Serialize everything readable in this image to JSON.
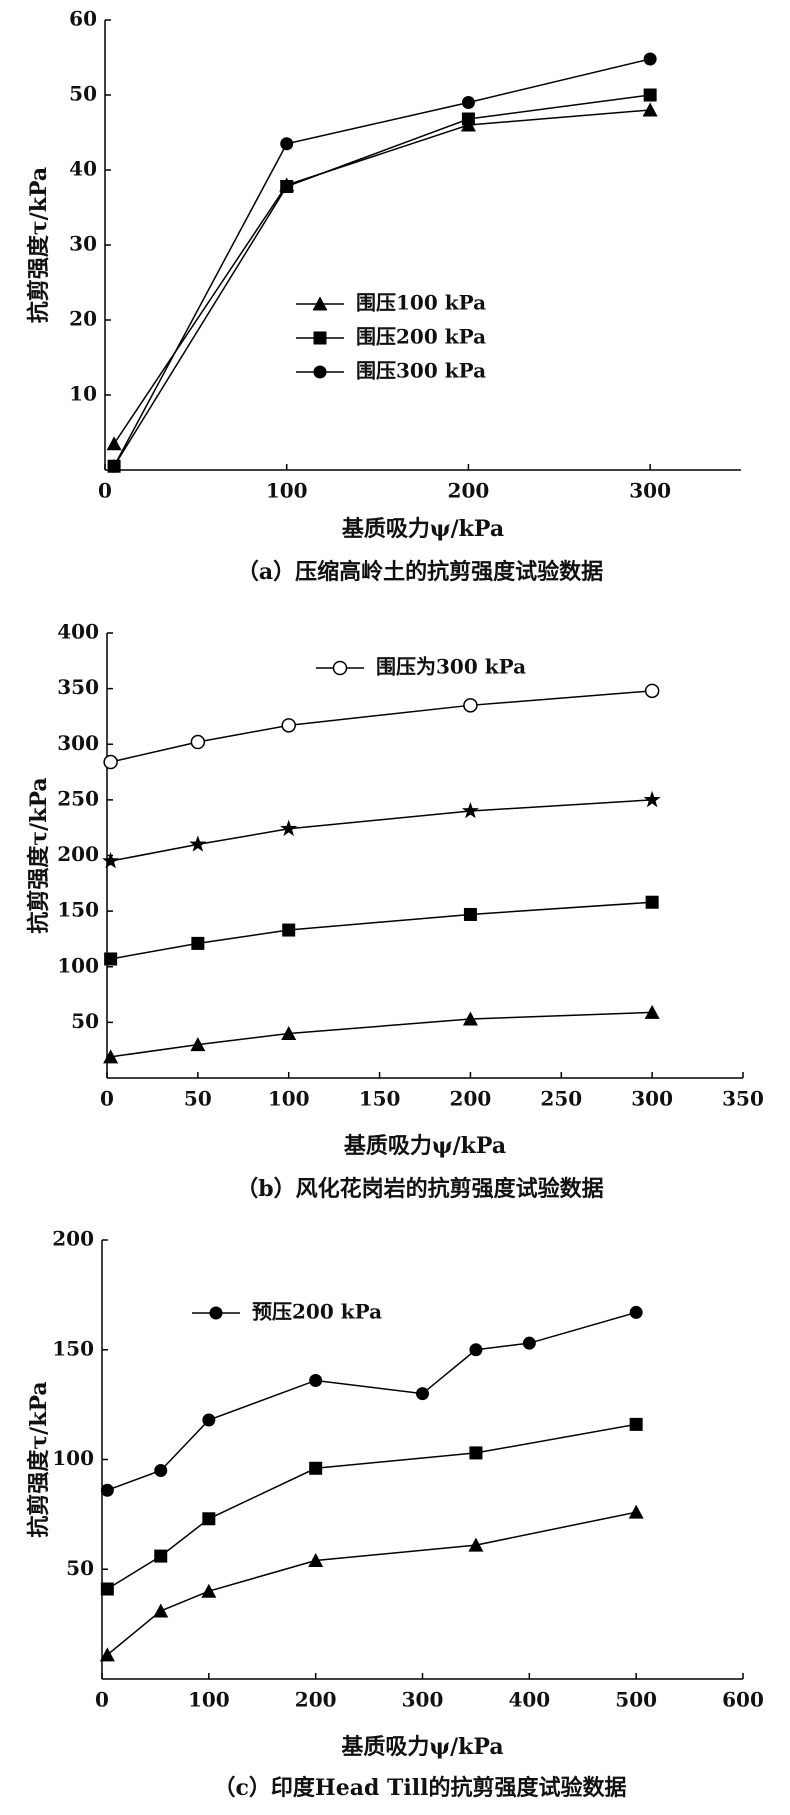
{
  "chart_data": [
    {
      "type": "line",
      "x_label": "基质吸力ψ/kPa",
      "y_label": "抗剪强度τ/kPa",
      "caption": "（a）压缩高岭土的抗剪强度试验数据",
      "x": [
        5,
        100,
        200,
        300
      ],
      "series": [
        {
          "name": "围压100 kPa",
          "color": "#000000",
          "marker": "triangle",
          "values": [
            3.5,
            38,
            46,
            48
          ]
        },
        {
          "name": "围压200 kPa",
          "color": "#000000",
          "marker": "square",
          "values": [
            0.5,
            37.8,
            46.8,
            50
          ]
        },
        {
          "name": "围压300 kPa",
          "color": "#000000",
          "marker": "circle",
          "values": [
            0.5,
            43.5,
            49,
            54.8
          ]
        }
      ],
      "xlim": [
        0,
        350
      ],
      "xticks": [
        0,
        100,
        200,
        300
      ],
      "ylim": [
        0,
        60
      ],
      "yticks": [
        10,
        20,
        30,
        40,
        50,
        60
      ]
    },
    {
      "type": "line",
      "x_label": "基质吸力ψ/kPa",
      "y_label": "抗剪强度τ/kPa",
      "caption": "（b）风化花岗岩的抗剪强度试验数据",
      "x": [
        2,
        50,
        100,
        200,
        300
      ],
      "series": [
        {
          "name": "围压为300 kPa",
          "color": "#000000",
          "marker": "open-circle",
          "values": [
            284,
            302,
            317,
            335,
            348
          ]
        },
        {
          "color": "#000000",
          "marker": "star",
          "values": [
            195,
            210,
            224,
            240,
            250
          ]
        },
        {
          "color": "#000000",
          "marker": "square",
          "values": [
            107,
            121,
            133,
            147,
            158
          ]
        },
        {
          "color": "#000000",
          "marker": "triangle",
          "values": [
            19,
            30,
            40,
            53,
            59
          ]
        }
      ],
      "xlim": [
        0,
        350
      ],
      "xticks": [
        0,
        50,
        100,
        150,
        200,
        250,
        300,
        350
      ],
      "ylim": [
        0,
        400
      ],
      "yticks": [
        50,
        100,
        150,
        200,
        250,
        300,
        350,
        400
      ]
    },
    {
      "type": "line",
      "x_label": "基质吸力ψ/kPa",
      "y_label": "抗剪强度τ/kPa",
      "caption": "（c）印度Head Till的抗剪强度试验数据",
      "series": [
        {
          "name": "预压200 kPa",
          "color": "#000000",
          "marker": "circle",
          "x": [
            5,
            55,
            100,
            200,
            300,
            350,
            400,
            500
          ],
          "values": [
            86,
            95,
            118,
            136,
            130,
            150,
            153,
            167
          ]
        },
        {
          "color": "#000000",
          "marker": "square",
          "x": [
            5,
            55,
            100,
            200,
            350,
            500
          ],
          "values": [
            41,
            56,
            73,
            96,
            103,
            116
          ]
        },
        {
          "color": "#000000",
          "marker": "triangle",
          "x": [
            5,
            55,
            100,
            200,
            350,
            500
          ],
          "values": [
            11,
            31,
            40,
            54,
            61,
            76
          ]
        }
      ],
      "xlim": [
        0,
        600
      ],
      "xticks": [
        0,
        100,
        200,
        300,
        400,
        500,
        600
      ],
      "ylim": [
        0,
        200
      ],
      "yticks": [
        50,
        100,
        150,
        200
      ]
    }
  ]
}
